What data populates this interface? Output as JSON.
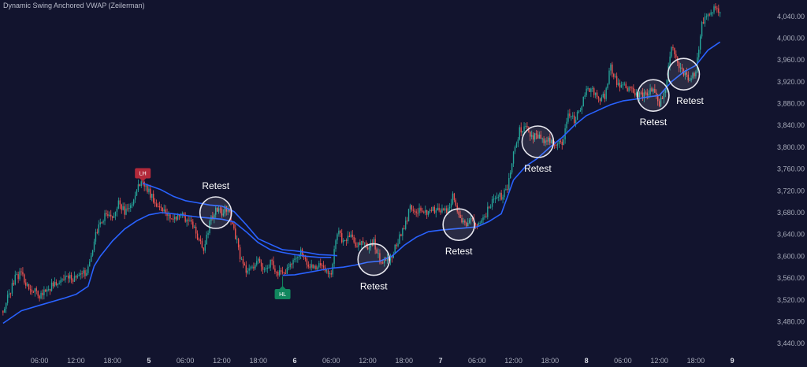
{
  "indicator": {
    "title": "Dynamic Swing Anchored VWAP (Zeilerman)"
  },
  "colors": {
    "background": "#12142e",
    "up_candle": "#26a69a",
    "down_candle": "#ef5350",
    "vwap": "#2962ff",
    "retest_circle": "#e6e6ee",
    "lh_label": "#b2293a",
    "hl_label": "#11875e",
    "axis_text": "#a7abba"
  },
  "chart_data": {
    "type": "candlestick",
    "ylim": [
      3420,
      4070
    ],
    "y_ticks": [
      {
        "v": 3440,
        "label": "3,440.00"
      },
      {
        "v": 3480,
        "label": "3,480.00"
      },
      {
        "v": 3520,
        "label": "3,520.00"
      },
      {
        "v": 3560,
        "label": "3,560.00"
      },
      {
        "v": 3600,
        "label": "3,600.00"
      },
      {
        "v": 3640,
        "label": "3,640.00"
      },
      {
        "v": 3680,
        "label": "3,680.00"
      },
      {
        "v": 3720,
        "label": "3,720.00"
      },
      {
        "v": 3760,
        "label": "3,760.00"
      },
      {
        "v": 3800,
        "label": "3,800.00"
      },
      {
        "v": 3840,
        "label": "3,840.00"
      },
      {
        "v": 3880,
        "label": "3,880.00"
      },
      {
        "v": 3920,
        "label": "3,920.00"
      },
      {
        "v": 3960,
        "label": "3,960.00"
      },
      {
        "v": 4000,
        "label": "4,000.00"
      },
      {
        "v": 4040,
        "label": "4,040.00"
      }
    ],
    "x_ticks": [
      {
        "t": 6,
        "label": "06:00",
        "bold": false
      },
      {
        "t": 12,
        "label": "12:00",
        "bold": false
      },
      {
        "t": 18,
        "label": "18:00",
        "bold": false
      },
      {
        "t": 24,
        "label": "5",
        "bold": true
      },
      {
        "t": 30,
        "label": "06:00",
        "bold": false
      },
      {
        "t": 36,
        "label": "12:00",
        "bold": false
      },
      {
        "t": 42,
        "label": "18:00",
        "bold": false
      },
      {
        "t": 48,
        "label": "6",
        "bold": true
      },
      {
        "t": 54,
        "label": "06:00",
        "bold": false
      },
      {
        "t": 60,
        "label": "12:00",
        "bold": false
      },
      {
        "t": 66,
        "label": "18:00",
        "bold": false
      },
      {
        "t": 72,
        "label": "7",
        "bold": true
      },
      {
        "t": 78,
        "label": "06:00",
        "bold": false
      },
      {
        "t": 84,
        "label": "12:00",
        "bold": false
      },
      {
        "t": 90,
        "label": "18:00",
        "bold": false
      },
      {
        "t": 96,
        "label": "8",
        "bold": true
      },
      {
        "t": 102,
        "label": "06:00",
        "bold": false
      },
      {
        "t": 108,
        "label": "12:00",
        "bold": false
      },
      {
        "t": 114,
        "label": "18:00",
        "bold": false
      },
      {
        "t": 120,
        "label": "9",
        "bold": true
      }
    ],
    "price_path": [
      [
        0,
        3500
      ],
      [
        2,
        3560
      ],
      [
        3,
        3570
      ],
      [
        4,
        3545
      ],
      [
        6,
        3528
      ],
      [
        8,
        3545
      ],
      [
        10,
        3558
      ],
      [
        12,
        3560
      ],
      [
        13,
        3565
      ],
      [
        14,
        3575
      ],
      [
        15,
        3630
      ],
      [
        16,
        3660
      ],
      [
        17,
        3680
      ],
      [
        18,
        3665
      ],
      [
        19,
        3700
      ],
      [
        20,
        3680
      ],
      [
        21,
        3690
      ],
      [
        22,
        3725
      ],
      [
        23,
        3735
      ],
      [
        24,
        3718
      ],
      [
        25,
        3700
      ],
      [
        26,
        3690
      ],
      [
        28,
        3665
      ],
      [
        29,
        3680
      ],
      [
        30,
        3668
      ],
      [
        31,
        3665
      ],
      [
        32,
        3630
      ],
      [
        33,
        3615
      ],
      [
        34,
        3660
      ],
      [
        35,
        3685
      ],
      [
        36,
        3680
      ],
      [
        37,
        3690
      ],
      [
        38,
        3650
      ],
      [
        39,
        3600
      ],
      [
        40,
        3570
      ],
      [
        41,
        3578
      ],
      [
        42,
        3595
      ],
      [
        43,
        3575
      ],
      [
        44,
        3590
      ],
      [
        45,
        3572
      ],
      [
        46,
        3565
      ],
      [
        47,
        3578
      ],
      [
        48,
        3592
      ],
      [
        49,
        3612
      ],
      [
        50,
        3585
      ],
      [
        51,
        3578
      ],
      [
        52,
        3582
      ],
      [
        53,
        3575
      ],
      [
        54,
        3570
      ],
      [
        55,
        3645
      ],
      [
        56,
        3628
      ],
      [
        57,
        3640
      ],
      [
        58,
        3620
      ],
      [
        59,
        3625
      ],
      [
        60,
        3618
      ],
      [
        61,
        3625
      ],
      [
        62,
        3590
      ],
      [
        63,
        3595
      ],
      [
        64,
        3600
      ],
      [
        65,
        3630
      ],
      [
        66,
        3650
      ],
      [
        67,
        3690
      ],
      [
        68,
        3685
      ],
      [
        69,
        3682
      ],
      [
        70,
        3680
      ],
      [
        71,
        3685
      ],
      [
        72,
        3682
      ],
      [
        73,
        3682
      ],
      [
        74,
        3710
      ],
      [
        75,
        3675
      ],
      [
        76,
        3660
      ],
      [
        77,
        3665
      ],
      [
        78,
        3660
      ],
      [
        79,
        3665
      ],
      [
        80,
        3690
      ],
      [
        81,
        3708
      ],
      [
        82,
        3710
      ],
      [
        83,
        3722
      ],
      [
        84,
        3790
      ],
      [
        85,
        3830
      ],
      [
        86,
        3838
      ],
      [
        87,
        3820
      ],
      [
        88,
        3818
      ],
      [
        89,
        3812
      ],
      [
        90,
        3810
      ],
      [
        91,
        3805
      ],
      [
        92,
        3808
      ],
      [
        93,
        3860
      ],
      [
        94,
        3850
      ],
      [
        95,
        3870
      ],
      [
        96,
        3902
      ],
      [
        97,
        3905
      ],
      [
        98,
        3890
      ],
      [
        99,
        3892
      ],
      [
        100,
        3950
      ],
      [
        101,
        3915
      ],
      [
        102,
        3912
      ],
      [
        103,
        3908
      ],
      [
        104,
        3900
      ],
      [
        105,
        3895
      ],
      [
        106,
        3900
      ],
      [
        107,
        3905
      ],
      [
        108,
        3880
      ],
      [
        109,
        3898
      ],
      [
        110,
        3990
      ],
      [
        111,
        3955
      ],
      [
        112,
        3935
      ],
      [
        113,
        3925
      ],
      [
        114,
        3940
      ],
      [
        115,
        4030
      ],
      [
        116,
        4045
      ],
      [
        117,
        4055
      ],
      [
        118,
        4050
      ]
    ],
    "vwap_segments": [
      {
        "anchor": "start",
        "points": [
          [
            0,
            3477
          ],
          [
            3,
            3500
          ],
          [
            6,
            3510
          ],
          [
            10,
            3523
          ],
          [
            12,
            3530
          ],
          [
            14,
            3545
          ],
          [
            15,
            3582
          ],
          [
            16,
            3600
          ],
          [
            18,
            3628
          ],
          [
            20,
            3650
          ],
          [
            22,
            3665
          ],
          [
            24,
            3676
          ],
          [
            26,
            3680
          ],
          [
            28,
            3678
          ],
          [
            30,
            3675
          ],
          [
            32,
            3672
          ],
          [
            34,
            3670
          ],
          [
            36,
            3668
          ],
          [
            38,
            3663
          ],
          [
            40,
            3645
          ],
          [
            42,
            3625
          ],
          [
            44,
            3612
          ],
          [
            46,
            3607
          ],
          [
            48,
            3603
          ],
          [
            50,
            3600
          ],
          [
            52,
            3598
          ],
          [
            54,
            3598
          ]
        ]
      },
      {
        "anchor": "LH",
        "points": [
          [
            23,
            3734
          ],
          [
            24,
            3730
          ],
          [
            26,
            3722
          ],
          [
            28,
            3710
          ],
          [
            30,
            3702
          ],
          [
            32,
            3698
          ],
          [
            34,
            3694
          ],
          [
            36,
            3692
          ],
          [
            38,
            3682
          ],
          [
            40,
            3658
          ],
          [
            42,
            3632
          ],
          [
            44,
            3622
          ],
          [
            46,
            3612
          ],
          [
            48,
            3610
          ],
          [
            50,
            3607
          ],
          [
            52,
            3603
          ],
          [
            54,
            3602
          ],
          [
            55,
            3601
          ]
        ]
      },
      {
        "anchor": "HL",
        "points": [
          [
            46,
            3565
          ],
          [
            48,
            3566
          ],
          [
            50,
            3570
          ],
          [
            52,
            3574
          ],
          [
            54,
            3578
          ],
          [
            56,
            3580
          ],
          [
            58,
            3584
          ],
          [
            60,
            3589
          ],
          [
            62,
            3591
          ],
          [
            64,
            3600
          ],
          [
            66,
            3620
          ],
          [
            68,
            3635
          ],
          [
            70,
            3645
          ],
          [
            72,
            3648
          ],
          [
            74,
            3650
          ],
          [
            76,
            3652
          ],
          [
            78,
            3654
          ],
          [
            80,
            3664
          ],
          [
            82,
            3678
          ],
          [
            84,
            3740
          ],
          [
            86,
            3765
          ],
          [
            88,
            3780
          ],
          [
            90,
            3800
          ],
          [
            92,
            3818
          ],
          [
            94,
            3840
          ],
          [
            96,
            3858
          ],
          [
            98,
            3868
          ],
          [
            100,
            3878
          ],
          [
            102,
            3885
          ],
          [
            104,
            3888
          ],
          [
            106,
            3892
          ],
          [
            108,
            3895
          ],
          [
            110,
            3920
          ],
          [
            112,
            3938
          ],
          [
            114,
            3950
          ],
          [
            116,
            3978
          ],
          [
            118,
            3993
          ]
        ]
      }
    ],
    "swing_labels": [
      {
        "type": "LH",
        "text": "LH",
        "t": 23,
        "price": 3737
      },
      {
        "type": "HL",
        "text": "HL",
        "t": 46,
        "price": 3563
      }
    ],
    "retests": [
      {
        "text": "Retest",
        "t": 35,
        "price": 3680,
        "text_pos": "above"
      },
      {
        "text": "Retest",
        "t": 61,
        "price": 3594,
        "text_pos": "below"
      },
      {
        "text": "Retest",
        "t": 75,
        "price": 3658,
        "text_pos": "below"
      },
      {
        "text": "Retest",
        "t": 88,
        "price": 3810,
        "text_pos": "below"
      },
      {
        "text": "Retest",
        "t": 107,
        "price": 3895,
        "text_pos": "below"
      },
      {
        "text": "Retest",
        "t": 112,
        "price": 3934,
        "text_pos": "below-right"
      }
    ]
  }
}
